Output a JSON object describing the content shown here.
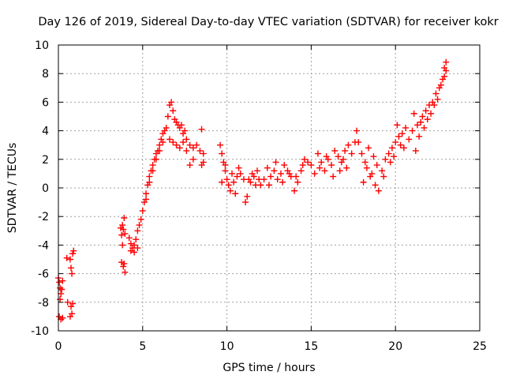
{
  "chart_data": {
    "type": "scatter",
    "title": "Day 126 of 2019, Sidereal Day-to-day VTEC variation (SDTVAR) for receiver kokr",
    "xlabel": "GPS time / hours",
    "ylabel": "SDTVAR / TECUs",
    "xlim": [
      0,
      25
    ],
    "ylim": [
      -10,
      10
    ],
    "xticks": [
      0,
      5,
      10,
      15,
      20,
      25
    ],
    "yticks": [
      -10,
      -8,
      -6,
      -4,
      -2,
      0,
      2,
      4,
      6,
      8,
      10
    ],
    "grid": true,
    "marker": "+",
    "series_color": "#ff0000",
    "series": [
      {
        "name": "SDTVAR",
        "points": [
          [
            0.0,
            -6.3
          ],
          [
            0.05,
            -6.6
          ],
          [
            0.1,
            -7.0
          ],
          [
            0.15,
            -7.4
          ],
          [
            0.2,
            -7.1
          ],
          [
            0.25,
            -6.5
          ],
          [
            0.05,
            -9.0
          ],
          [
            0.15,
            -9.2
          ],
          [
            0.25,
            -9.1
          ],
          [
            0.1,
            -7.8
          ],
          [
            0.5,
            -4.9
          ],
          [
            0.55,
            -8.0
          ],
          [
            0.7,
            -5.0
          ],
          [
            0.75,
            -5.6
          ],
          [
            0.8,
            -6.0
          ],
          [
            0.85,
            -4.6
          ],
          [
            0.9,
            -4.4
          ],
          [
            0.75,
            -8.3
          ],
          [
            0.8,
            -8.8
          ],
          [
            0.7,
            -9.0
          ],
          [
            0.85,
            -8.1
          ],
          [
            3.7,
            -2.8
          ],
          [
            3.75,
            -3.3
          ],
          [
            3.8,
            -2.6
          ],
          [
            3.85,
            -2.9
          ],
          [
            3.9,
            -2.1
          ],
          [
            3.95,
            -3.2
          ],
          [
            3.75,
            -5.2
          ],
          [
            3.85,
            -5.5
          ],
          [
            3.95,
            -5.9
          ],
          [
            3.9,
            -5.3
          ],
          [
            3.8,
            -4.0
          ],
          [
            4.2,
            -3.5
          ],
          [
            4.3,
            -3.9
          ],
          [
            4.4,
            -4.2
          ],
          [
            4.5,
            -4.0
          ],
          [
            4.6,
            -3.6
          ],
          [
            4.7,
            -3.0
          ],
          [
            4.8,
            -2.6
          ],
          [
            4.9,
            -2.2
          ],
          [
            5.0,
            -1.6
          ],
          [
            4.3,
            -4.4
          ],
          [
            4.5,
            -4.5
          ],
          [
            4.7,
            -4.2
          ],
          [
            5.1,
            -1.0
          ],
          [
            5.2,
            -0.4
          ],
          [
            5.3,
            0.2
          ],
          [
            5.4,
            0.8
          ],
          [
            5.5,
            1.2
          ],
          [
            5.6,
            1.6
          ],
          [
            5.7,
            2.0
          ],
          [
            5.8,
            2.4
          ],
          [
            5.9,
            2.6
          ],
          [
            6.0,
            3.0
          ],
          [
            6.1,
            3.4
          ],
          [
            6.2,
            3.8
          ],
          [
            6.3,
            4.0
          ],
          [
            6.4,
            4.2
          ],
          [
            5.2,
            -0.8
          ],
          [
            5.4,
            0.4
          ],
          [
            5.6,
            1.2
          ],
          [
            5.8,
            2.0
          ],
          [
            6.0,
            2.6
          ],
          [
            6.2,
            3.2
          ],
          [
            6.5,
            5.0
          ],
          [
            6.6,
            5.8
          ],
          [
            6.7,
            6.0
          ],
          [
            6.8,
            5.4
          ],
          [
            6.9,
            4.8
          ],
          [
            7.0,
            4.6
          ],
          [
            7.1,
            4.4
          ],
          [
            7.2,
            4.2
          ],
          [
            7.3,
            4.4
          ],
          [
            7.4,
            3.8
          ],
          [
            7.5,
            4.0
          ],
          [
            7.6,
            3.4
          ],
          [
            7.8,
            3.0
          ],
          [
            8.0,
            2.8
          ],
          [
            8.2,
            3.0
          ],
          [
            8.4,
            2.6
          ],
          [
            8.5,
            4.1
          ],
          [
            8.6,
            2.4
          ],
          [
            6.6,
            3.4
          ],
          [
            6.8,
            3.2
          ],
          [
            7.0,
            3.0
          ],
          [
            7.2,
            2.8
          ],
          [
            7.4,
            3.2
          ],
          [
            7.6,
            2.6
          ],
          [
            7.8,
            1.6
          ],
          [
            8.0,
            2.0
          ],
          [
            8.5,
            1.6
          ],
          [
            8.6,
            1.8
          ],
          [
            9.6,
            3.0
          ],
          [
            9.7,
            2.4
          ],
          [
            9.8,
            1.8
          ],
          [
            9.9,
            1.2
          ],
          [
            10.0,
            0.6
          ],
          [
            10.1,
            0.2
          ],
          [
            10.2,
            -0.2
          ],
          [
            10.4,
            0.4
          ],
          [
            10.6,
            0.8
          ],
          [
            10.8,
            1.0
          ],
          [
            11.0,
            0.6
          ],
          [
            11.2,
            -0.6
          ],
          [
            11.4,
            0.4
          ],
          [
            11.6,
            0.8
          ],
          [
            11.8,
            1.2
          ],
          [
            12.0,
            0.2
          ],
          [
            9.7,
            0.4
          ],
          [
            9.9,
            1.6
          ],
          [
            10.3,
            1.0
          ],
          [
            10.5,
            -0.4
          ],
          [
            10.7,
            1.4
          ],
          [
            11.1,
            -1.0
          ],
          [
            11.3,
            0.6
          ],
          [
            11.5,
            1.0
          ],
          [
            11.7,
            0.2
          ],
          [
            11.9,
            0.6
          ],
          [
            12.2,
            0.6
          ],
          [
            12.4,
            1.4
          ],
          [
            12.6,
            0.8
          ],
          [
            12.8,
            1.2
          ],
          [
            13.0,
            0.6
          ],
          [
            13.2,
            1.0
          ],
          [
            13.4,
            1.6
          ],
          [
            13.6,
            1.2
          ],
          [
            13.8,
            0.8
          ],
          [
            14.0,
            -0.2
          ],
          [
            14.2,
            0.4
          ],
          [
            14.4,
            1.2
          ],
          [
            14.6,
            2.0
          ],
          [
            14.8,
            1.8
          ],
          [
            15.0,
            1.6
          ],
          [
            12.5,
            0.2
          ],
          [
            12.9,
            1.8
          ],
          [
            13.3,
            0.4
          ],
          [
            13.7,
            1.0
          ],
          [
            14.1,
            0.8
          ],
          [
            14.5,
            1.6
          ],
          [
            15.2,
            1.0
          ],
          [
            15.4,
            2.4
          ],
          [
            15.6,
            1.8
          ],
          [
            15.8,
            1.2
          ],
          [
            16.0,
            2.0
          ],
          [
            16.2,
            1.6
          ],
          [
            16.4,
            2.6
          ],
          [
            16.6,
            2.2
          ],
          [
            16.8,
            1.8
          ],
          [
            17.0,
            2.6
          ],
          [
            17.2,
            3.0
          ],
          [
            17.4,
            2.4
          ],
          [
            17.6,
            3.2
          ],
          [
            15.5,
            1.4
          ],
          [
            15.9,
            2.2
          ],
          [
            16.3,
            0.8
          ],
          [
            16.7,
            1.2
          ],
          [
            16.9,
            2.0
          ],
          [
            17.1,
            1.4
          ],
          [
            17.7,
            4.0
          ],
          [
            17.8,
            3.2
          ],
          [
            18.0,
            2.4
          ],
          [
            18.1,
            0.4
          ],
          [
            18.2,
            1.8
          ],
          [
            18.4,
            2.8
          ],
          [
            18.5,
            0.8
          ],
          [
            18.6,
            1.0
          ],
          [
            18.8,
            0.2
          ],
          [
            19.0,
            -0.2
          ],
          [
            19.2,
            1.2
          ],
          [
            19.4,
            2.0
          ],
          [
            19.6,
            2.4
          ],
          [
            19.8,
            2.8
          ],
          [
            20.0,
            3.2
          ],
          [
            18.3,
            1.4
          ],
          [
            18.7,
            2.2
          ],
          [
            18.9,
            1.6
          ],
          [
            19.3,
            0.8
          ],
          [
            19.7,
            1.8
          ],
          [
            19.9,
            2.2
          ],
          [
            20.1,
            4.4
          ],
          [
            20.2,
            3.6
          ],
          [
            20.3,
            3.0
          ],
          [
            20.4,
            3.8
          ],
          [
            20.5,
            2.8
          ],
          [
            20.6,
            4.2
          ],
          [
            20.8,
            3.4
          ],
          [
            21.0,
            4.0
          ],
          [
            21.2,
            2.6
          ],
          [
            21.4,
            3.6
          ],
          [
            21.5,
            4.6
          ],
          [
            21.6,
            5.0
          ],
          [
            21.8,
            5.4
          ],
          [
            22.0,
            5.8
          ],
          [
            22.2,
            6.0
          ],
          [
            22.4,
            6.6
          ],
          [
            22.6,
            7.0
          ],
          [
            22.8,
            7.6
          ],
          [
            22.9,
            8.4
          ],
          [
            23.0,
            8.8
          ],
          [
            21.1,
            5.2
          ],
          [
            21.3,
            4.4
          ],
          [
            21.7,
            4.2
          ],
          [
            21.9,
            4.8
          ],
          [
            22.1,
            5.2
          ],
          [
            22.3,
            5.8
          ],
          [
            22.5,
            6.2
          ],
          [
            22.7,
            7.2
          ],
          [
            22.9,
            7.8
          ],
          [
            23.0,
            8.2
          ]
        ]
      }
    ]
  }
}
